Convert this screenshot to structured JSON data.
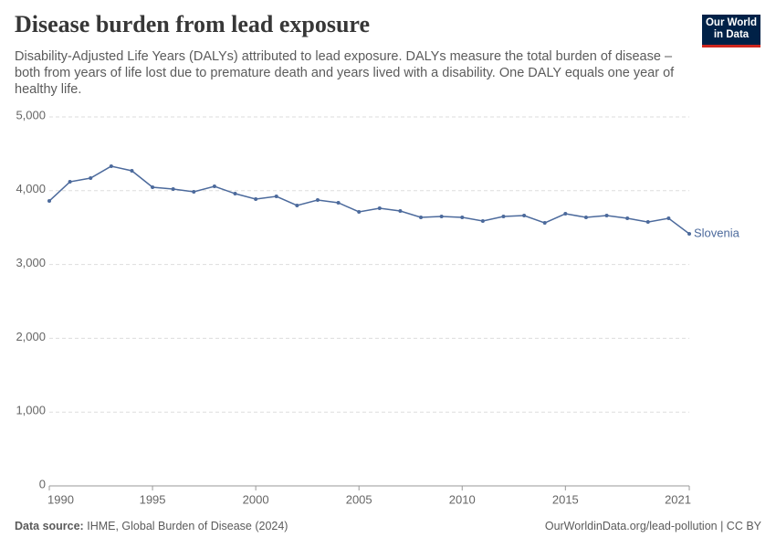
{
  "chart_data": {
    "type": "line",
    "title": "Disease burden from lead exposure",
    "subtitle": "Disability-Adjusted Life Years (DALYs) attributed to lead exposure. DALYs measure the total burden of disease – both from years of life lost due to premature death and years lived with a disability. One DALY equals one year of healthy life.",
    "logo": [
      "Our World",
      "in Data"
    ],
    "source_label": "Data source:",
    "source": "IHME, Global Burden of Disease (2024)",
    "credit": "OurWorldinData.org/lead-pollution | CC BY",
    "x": [
      1990,
      1991,
      1992,
      1993,
      1994,
      1995,
      1996,
      1997,
      1998,
      1999,
      2000,
      2001,
      2002,
      2003,
      2004,
      2005,
      2006,
      2007,
      2008,
      2009,
      2010,
      2011,
      2012,
      2013,
      2014,
      2015,
      2016,
      2017,
      2018,
      2019,
      2020,
      2021
    ],
    "series": [
      {
        "name": "Slovenia",
        "color": "#4c6a9c",
        "values": [
          3861,
          4121,
          4171,
          4332,
          4270,
          4047,
          4022,
          3985,
          4059,
          3960,
          3886,
          3923,
          3800,
          3874,
          3837,
          3713,
          3762,
          3725,
          3639,
          3651,
          3639,
          3589,
          3651,
          3663,
          3564,
          3688,
          3639,
          3663,
          3626,
          3576,
          3626,
          3416
        ]
      }
    ],
    "xlim": [
      1990,
      2021
    ],
    "xticks": [
      1990,
      1995,
      2000,
      2005,
      2010,
      2015,
      2021
    ],
    "ylim": [
      0,
      5000
    ],
    "yticks": [
      0,
      {
        "value": 1000,
        "label": "1,000"
      },
      {
        "value": 2000,
        "label": "2,000"
      },
      {
        "value": 3000,
        "label": "3,000"
      },
      {
        "value": 4000,
        "label": "4,000"
      },
      {
        "value": 5000,
        "label": "5,000"
      }
    ],
    "grid": true
  }
}
